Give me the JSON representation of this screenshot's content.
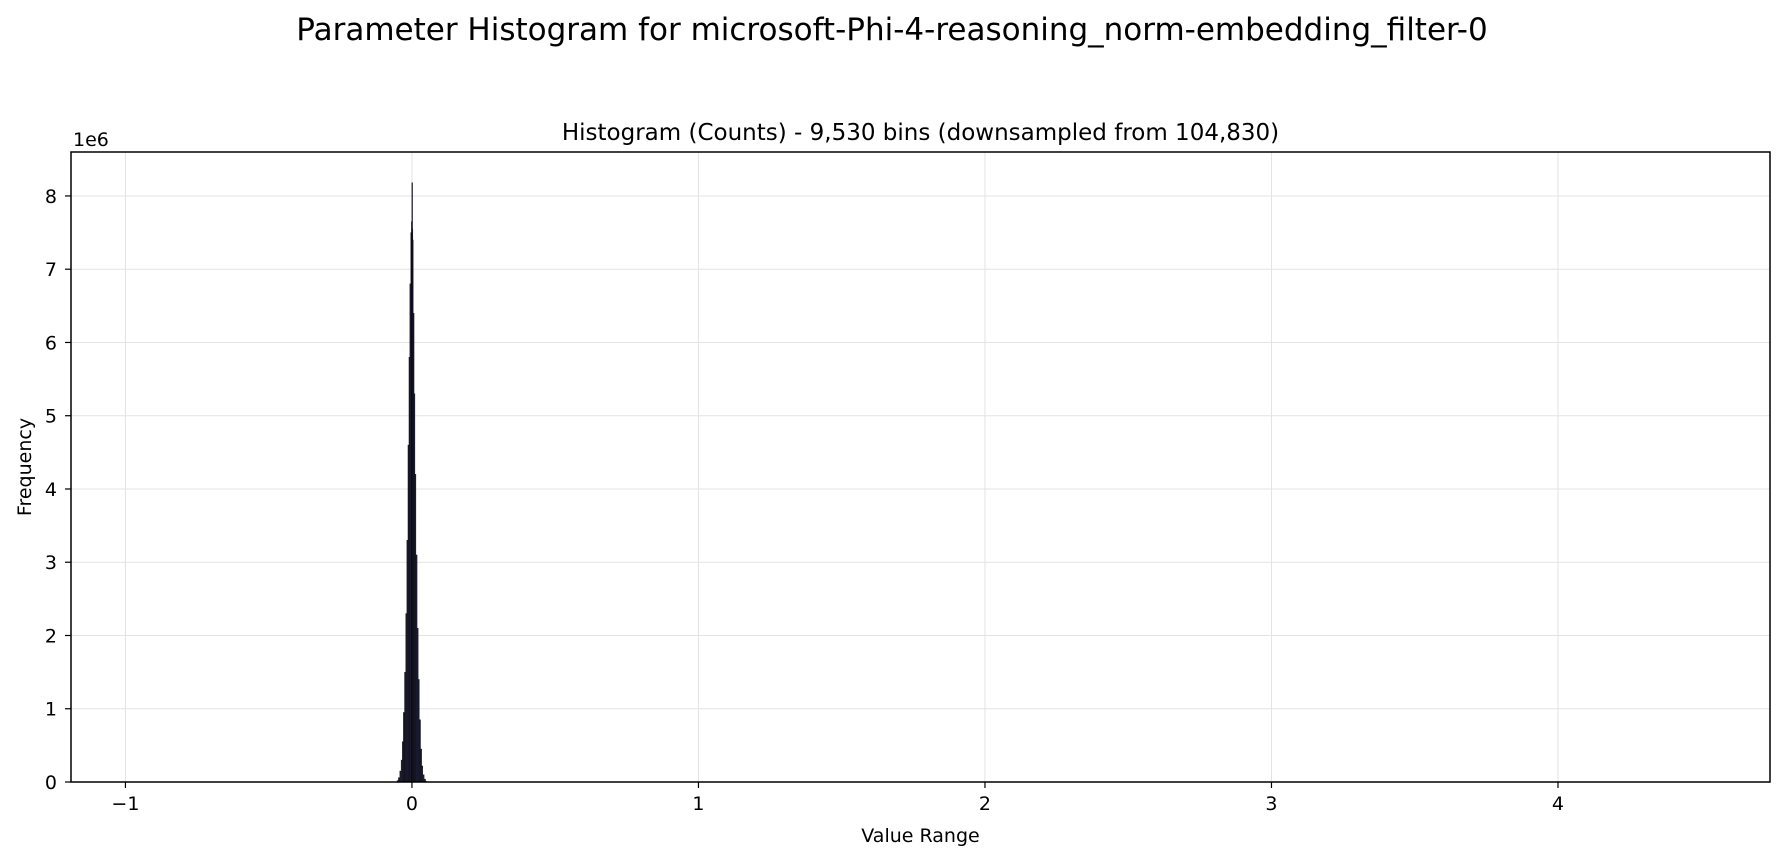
{
  "figure": {
    "suptitle": "Parameter Histogram for microsoft-Phi-4-reasoning_norm-embedding_filter-0"
  },
  "chart_data": {
    "type": "bar",
    "title": "Histogram (Counts) - 9,530 bins (downsampled from 104,830)",
    "xlabel": "Value Range",
    "ylabel": "Frequency",
    "y_offset_label": "1e6",
    "y_scale_multiplier": 1000000,
    "xlim": [
      -1.19,
      4.74
    ],
    "ylim": [
      0,
      8.6
    ],
    "x_ticks": [
      -1,
      0,
      1,
      2,
      3,
      4
    ],
    "x_tick_labels": [
      "−1",
      "0",
      "1",
      "2",
      "3",
      "4"
    ],
    "y_ticks": [
      0,
      1,
      2,
      3,
      4,
      5,
      6,
      7,
      8
    ],
    "y_tick_labels": [
      "0",
      "1",
      "2",
      "3",
      "4",
      "5",
      "6",
      "7",
      "8"
    ],
    "grid": true,
    "bar_color": "#1f1f3a",
    "bar_edge_color": "#000000",
    "bins": [
      {
        "x": -0.05,
        "y": 0.02
      },
      {
        "x": -0.045,
        "y": 0.06
      },
      {
        "x": -0.04,
        "y": 0.15
      },
      {
        "x": -0.036,
        "y": 0.3
      },
      {
        "x": -0.032,
        "y": 0.55
      },
      {
        "x": -0.028,
        "y": 0.95
      },
      {
        "x": -0.024,
        "y": 1.5
      },
      {
        "x": -0.02,
        "y": 2.3
      },
      {
        "x": -0.016,
        "y": 3.3
      },
      {
        "x": -0.012,
        "y": 4.6
      },
      {
        "x": -0.009,
        "y": 5.8
      },
      {
        "x": -0.006,
        "y": 6.8
      },
      {
        "x": -0.003,
        "y": 7.5
      },
      {
        "x": -0.001,
        "y": 7.65
      },
      {
        "x": 0.0,
        "y": 8.18
      },
      {
        "x": 0.001,
        "y": 7.55
      },
      {
        "x": 0.003,
        "y": 7.4
      },
      {
        "x": 0.006,
        "y": 6.4
      },
      {
        "x": 0.009,
        "y": 5.3
      },
      {
        "x": 0.012,
        "y": 4.2
      },
      {
        "x": 0.016,
        "y": 3.1
      },
      {
        "x": 0.02,
        "y": 2.1
      },
      {
        "x": 0.024,
        "y": 1.4
      },
      {
        "x": 0.028,
        "y": 0.85
      },
      {
        "x": 0.032,
        "y": 0.45
      },
      {
        "x": 0.036,
        "y": 0.22
      },
      {
        "x": 0.04,
        "y": 0.1
      },
      {
        "x": 0.045,
        "y": 0.04
      },
      {
        "x": 0.05,
        "y": 0.01
      }
    ]
  }
}
